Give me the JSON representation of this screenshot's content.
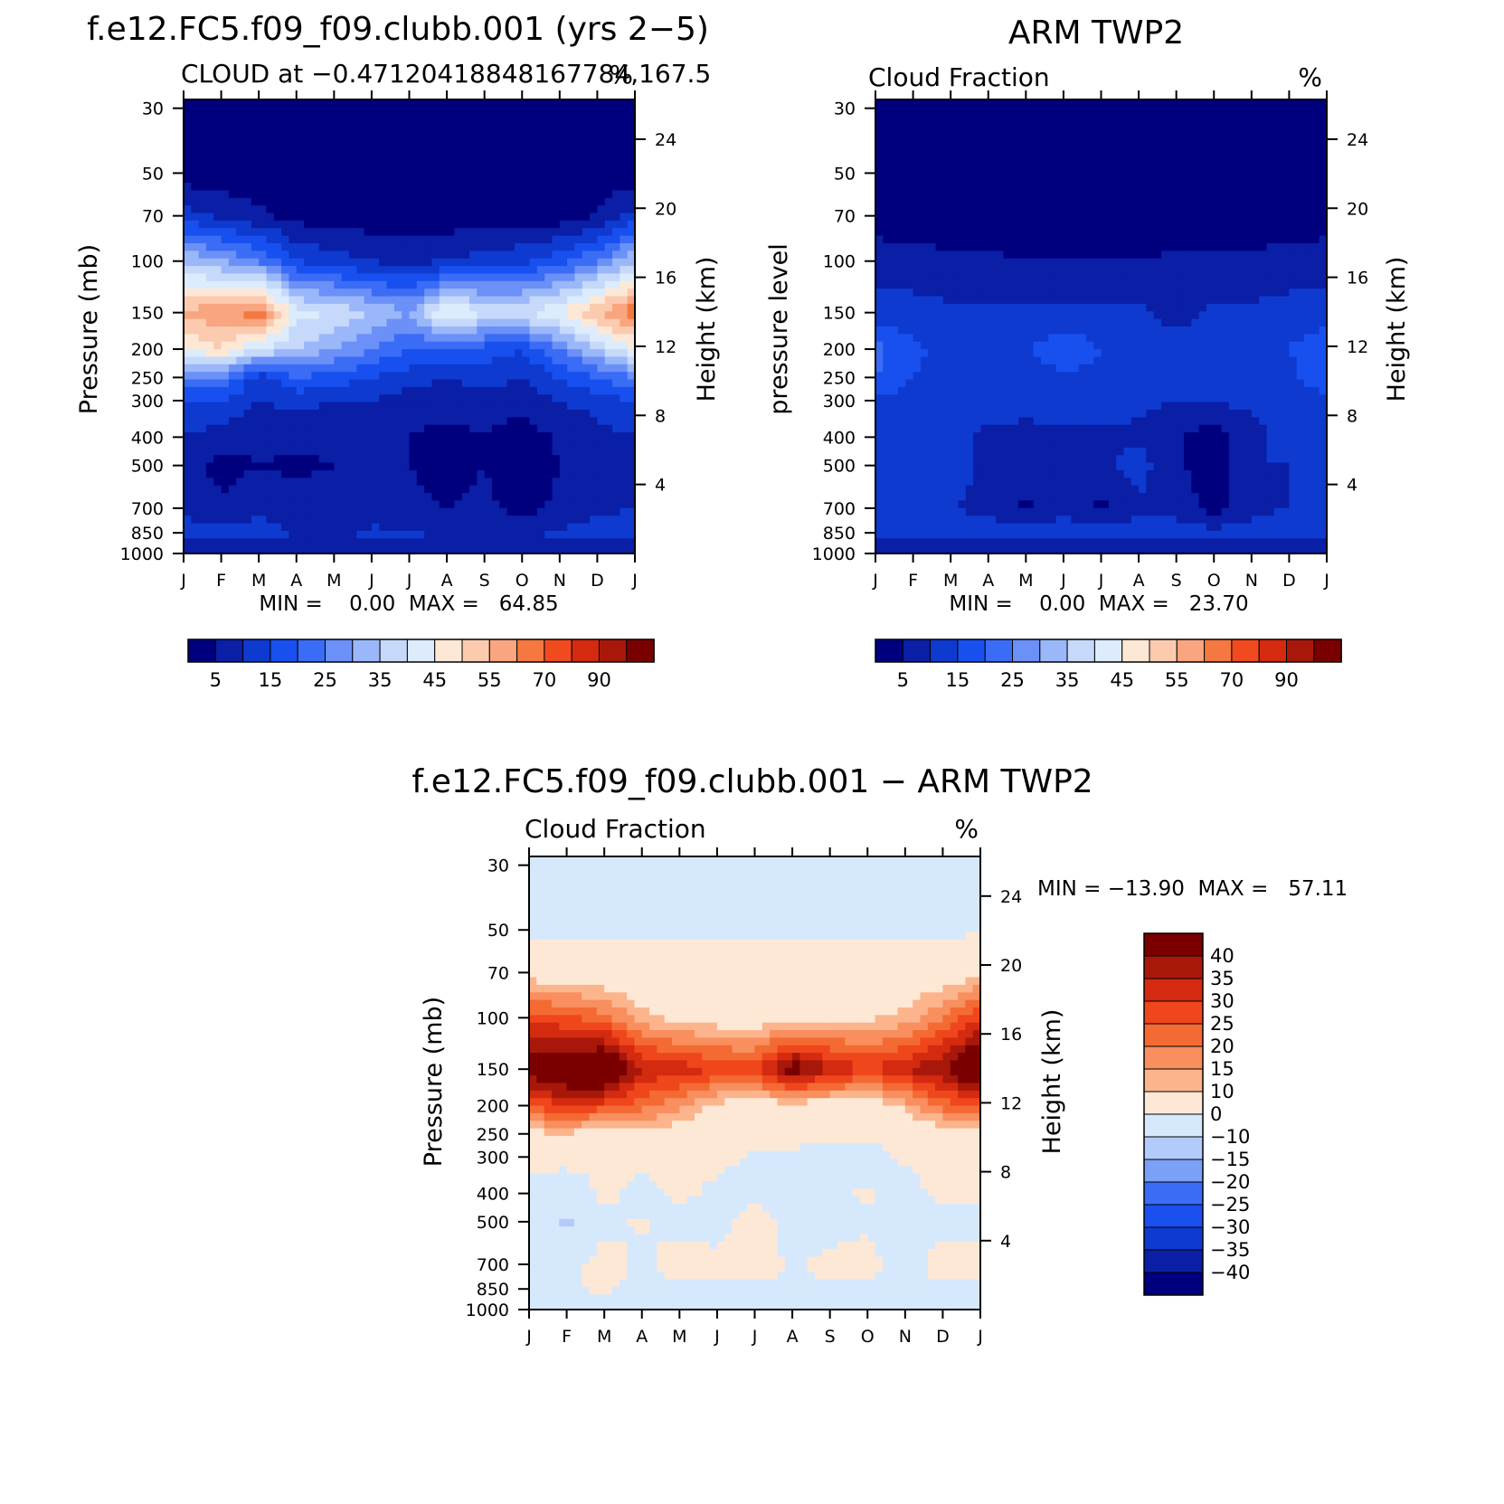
{
  "months": [
    "J",
    "F",
    "M",
    "A",
    "M",
    "J",
    "J",
    "A",
    "S",
    "O",
    "N",
    "D",
    "J"
  ],
  "pressure_ticks": [
    30,
    50,
    70,
    100,
    150,
    200,
    250,
    300,
    400,
    500,
    700,
    850,
    1000
  ],
  "height_ticks": [
    4,
    8,
    12,
    16,
    20,
    24
  ],
  "abs_colors": [
    "#00007f",
    "#0a1ea6",
    "#0e3ad0",
    "#1850f0",
    "#3a6cf5",
    "#6b90f7",
    "#9ab7f9",
    "#c6d9fb",
    "#dcecfc",
    "#fde8d6",
    "#fbcaaf",
    "#f9a57f",
    "#f4783f",
    "#f04a1e",
    "#d42a10",
    "#a8180a",
    "#7a0000"
  ],
  "diff_colors": [
    "#00007f",
    "#0a1ea6",
    "#0e3ad0",
    "#1a4ff0",
    "#3a6cf5",
    "#7aa0f8",
    "#b3cbfa",
    "#d6e8fc",
    "#fde8d6",
    "#fcb48c",
    "#f98e5e",
    "#f46a33",
    "#f0461c",
    "#d42a10",
    "#a8180a",
    "#7a0000"
  ],
  "panels": {
    "model": {
      "case_title": "f.e12.FC5.f09_f09.clubb.001 (yrs 2−5)",
      "subtitle": "CLOUD at −0.47120418848167784,167.5",
      "units": "%",
      "y_label": "Pressure (mb)",
      "y2_label": "Height (km)",
      "stats": "MIN =    0.00  MAX =   64.85",
      "colorbar_labels": [
        "5",
        "15",
        "25",
        "35",
        "45",
        "55",
        "70",
        "90"
      ]
    },
    "obs": {
      "case_title": "ARM TWP2",
      "subtitle": "Cloud Fraction",
      "units": "%",
      "y_label": "pressure level",
      "y2_label": "Height (km)",
      "stats": "MIN =    0.00  MAX =   23.70",
      "colorbar_labels": [
        "5",
        "15",
        "25",
        "35",
        "45",
        "55",
        "70",
        "90"
      ]
    },
    "diff": {
      "case_title": "f.e12.FC5.f09_f09.clubb.001 − ARM TWP2",
      "subtitle": "Cloud Fraction",
      "units": "%",
      "y_label": "Pressure (mb)",
      "y2_label": "Height (km)",
      "stats": "MIN = −13.90  MAX =   57.11",
      "colorbar_labels": [
        "40",
        "35",
        "30",
        "25",
        "20",
        "15",
        "10",
        "0",
        "−10",
        "−15",
        "−20",
        "−25",
        "−30",
        "−35",
        "−40"
      ]
    }
  },
  "chart_data": [
    {
      "type": "heatmap",
      "title": "f.e12.FC5.f09_f09.clubb.001 (yrs 2−5)",
      "subtitle": "CLOUD at −0.47120418848167784,167.5",
      "units": "%",
      "x": [
        "J",
        "F",
        "M",
        "A",
        "M",
        "J",
        "J",
        "A",
        "S",
        "O",
        "N",
        "D",
        "J"
      ],
      "y_pressure_mb": [
        30,
        50,
        70,
        100,
        150,
        200,
        250,
        300,
        400,
        500,
        700,
        850,
        1000
      ],
      "contour_levels": [
        5,
        10,
        15,
        20,
        25,
        30,
        35,
        40,
        45,
        50,
        55,
        60,
        70,
        80,
        90,
        100
      ],
      "colorbar_labels": [
        5,
        15,
        25,
        35,
        45,
        55,
        70,
        90
      ],
      "min": 0.0,
      "max": 64.85,
      "xlabel": "",
      "ylabel": "Pressure (mb)",
      "y2label": "Height (km)",
      "z": [
        [
          2,
          2,
          2,
          2,
          2,
          2,
          2,
          2,
          2,
          2,
          2,
          2,
          2
        ],
        [
          2,
          2,
          2,
          2,
          2,
          2,
          2,
          2,
          2,
          2,
          2,
          2,
          2
        ],
        [
          12,
          9,
          6,
          3,
          2,
          2,
          2,
          2,
          2,
          2,
          2,
          5,
          12
        ],
        [
          35,
          30,
          25,
          15,
          12,
          10,
          8,
          10,
          12,
          14,
          18,
          25,
          35
        ],
        [
          57,
          58,
          64,
          42,
          40,
          35,
          30,
          47,
          40,
          40,
          45,
          55,
          64
        ],
        [
          45,
          50,
          40,
          35,
          30,
          25,
          20,
          20,
          18,
          15,
          25,
          35,
          45
        ],
        [
          25,
          25,
          12,
          20,
          18,
          15,
          12,
          10,
          12,
          10,
          15,
          20,
          25
        ],
        [
          15,
          15,
          10,
          12,
          10,
          10,
          8,
          8,
          8,
          7,
          10,
          12,
          15
        ],
        [
          10,
          7,
          6,
          6,
          6,
          5,
          5,
          3,
          5,
          2,
          6,
          8,
          10
        ],
        [
          8,
          3,
          5,
          4,
          5,
          5,
          5,
          3,
          5,
          2,
          5,
          8,
          10
        ],
        [
          9,
          6,
          9,
          7,
          8,
          7,
          6,
          5,
          6,
          3,
          6,
          9,
          10
        ],
        [
          12,
          12,
          12,
          10,
          10,
          11,
          11,
          10,
          10,
          10,
          11,
          12,
          12
        ],
        [
          4,
          4,
          4,
          4,
          4,
          4,
          4,
          4,
          4,
          4,
          4,
          4,
          4
        ]
      ]
    },
    {
      "type": "heatmap",
      "title": "ARM TWP2",
      "subtitle": "Cloud Fraction",
      "units": "%",
      "x": [
        "J",
        "F",
        "M",
        "A",
        "M",
        "J",
        "J",
        "A",
        "S",
        "O",
        "N",
        "D",
        "J"
      ],
      "y_pressure_mb": [
        30,
        50,
        70,
        100,
        150,
        200,
        250,
        300,
        400,
        500,
        700,
        850,
        1000
      ],
      "contour_levels": [
        5,
        10,
        15,
        20,
        25,
        30,
        35,
        40,
        45,
        50,
        55,
        60,
        70,
        80,
        90,
        100
      ],
      "colorbar_labels": [
        5,
        15,
        25,
        35,
        45,
        55,
        70,
        90
      ],
      "min": 0.0,
      "max": 23.7,
      "xlabel": "",
      "ylabel": "pressure level",
      "y2label": "Height (km)",
      "z": [
        [
          2,
          2,
          2,
          2,
          2,
          2,
          2,
          2,
          2,
          2,
          2,
          2,
          2
        ],
        [
          2,
          2,
          2,
          2,
          2,
          2,
          2,
          2,
          2,
          2,
          2,
          2,
          2
        ],
        [
          2,
          2,
          2,
          2,
          2,
          2,
          2,
          2,
          2,
          2,
          2,
          2,
          2
        ],
        [
          8,
          7,
          6,
          6,
          5,
          5,
          5,
          5,
          6,
          6,
          6,
          7,
          8
        ],
        [
          12,
          12,
          11,
          11,
          11,
          11,
          11,
          11,
          8,
          11,
          11,
          12,
          12
        ],
        [
          22,
          16,
          13,
          14,
          14,
          19,
          15,
          14,
          12,
          13,
          13,
          15,
          19
        ],
        [
          20,
          15,
          14,
          14,
          13,
          14,
          14,
          13,
          12,
          13,
          13,
          14,
          18
        ],
        [
          14,
          13,
          12,
          12,
          11,
          12,
          12,
          11,
          10,
          11,
          11,
          12,
          14
        ],
        [
          13,
          12,
          11,
          9,
          9,
          9,
          9,
          9,
          6,
          2,
          8,
          12,
          13
        ],
        [
          13,
          12,
          12,
          9,
          9,
          9,
          9,
          12,
          6,
          2,
          10,
          10,
          13
        ],
        [
          12,
          10,
          10,
          9,
          4,
          9,
          4,
          9,
          9,
          2,
          9,
          10,
          12
        ],
        [
          13,
          12,
          12,
          12,
          12,
          12,
          12,
          12,
          12,
          12,
          12,
          12,
          13
        ],
        [
          6,
          6,
          6,
          6,
          6,
          6,
          6,
          6,
          6,
          6,
          6,
          6,
          6
        ]
      ]
    },
    {
      "type": "heatmap",
      "title": "f.e12.FC5.f09_f09.clubb.001 − ARM TWP2",
      "subtitle": "Cloud Fraction",
      "units": "%",
      "x": [
        "J",
        "F",
        "M",
        "A",
        "M",
        "J",
        "J",
        "A",
        "S",
        "O",
        "N",
        "D",
        "J"
      ],
      "y_pressure_mb": [
        30,
        50,
        70,
        100,
        150,
        200,
        250,
        300,
        400,
        500,
        700,
        850,
        1000
      ],
      "contour_levels": [
        -40,
        -35,
        -30,
        -25,
        -20,
        -15,
        -10,
        0,
        10,
        15,
        20,
        25,
        30,
        35,
        40
      ],
      "colorbar_labels": [
        40,
        35,
        30,
        25,
        20,
        15,
        10,
        0,
        -10,
        -15,
        -20,
        -25,
        -30,
        -35,
        -40
      ],
      "min": -13.9,
      "max": 57.11,
      "xlabel": "",
      "ylabel": "Pressure (mb)",
      "y2label": "Height (km)",
      "z": [
        [
          -2,
          -2,
          -2,
          -2,
          -2,
          -2,
          -2,
          -2,
          -2,
          -2,
          -2,
          -2,
          -2
        ],
        [
          -1,
          -1,
          -1,
          -1,
          -1,
          -1,
          -1,
          -1,
          -1,
          -1,
          -1,
          -1,
          -1
        ],
        [
          6,
          5,
          4,
          3,
          3,
          3,
          3,
          3,
          3,
          3,
          3,
          4,
          8
        ],
        [
          28,
          26,
          22,
          12,
          8,
          6,
          5,
          7,
          8,
          9,
          12,
          20,
          30
        ],
        [
          45,
          48,
          52,
          35,
          33,
          30,
          28,
          45,
          36,
          30,
          35,
          40,
          52
        ],
        [
          24,
          32,
          28,
          22,
          16,
          8,
          6,
          7,
          6,
          3,
          12,
          22,
          28
        ],
        [
          8,
          10,
          2,
          8,
          6,
          4,
          3,
          2,
          1,
          1,
          3,
          6,
          8
        ],
        [
          3,
          3,
          2,
          3,
          3,
          2,
          -1,
          -1,
          -2,
          -3,
          1,
          3,
          3
        ],
        [
          -3,
          -6,
          2,
          -3,
          2,
          -2,
          -3,
          -4,
          -1,
          1,
          -3,
          2,
          2
        ],
        [
          -4,
          -12,
          -2,
          1,
          -3,
          -3,
          4,
          -4,
          -3,
          -1,
          -4,
          -2,
          -2
        ],
        [
          -3,
          -2,
          3,
          -2,
          4,
          2,
          3,
          -1,
          2,
          2,
          -3,
          3,
          3
        ],
        [
          -1,
          -1,
          1,
          -2,
          -2,
          -1,
          -1,
          -1,
          -1,
          -1,
          -1,
          -1,
          -1
        ],
        [
          -2,
          -2,
          -2,
          -2,
          -2,
          -2,
          -2,
          -2,
          -2,
          -2,
          -2,
          -2,
          -2
        ]
      ]
    }
  ]
}
